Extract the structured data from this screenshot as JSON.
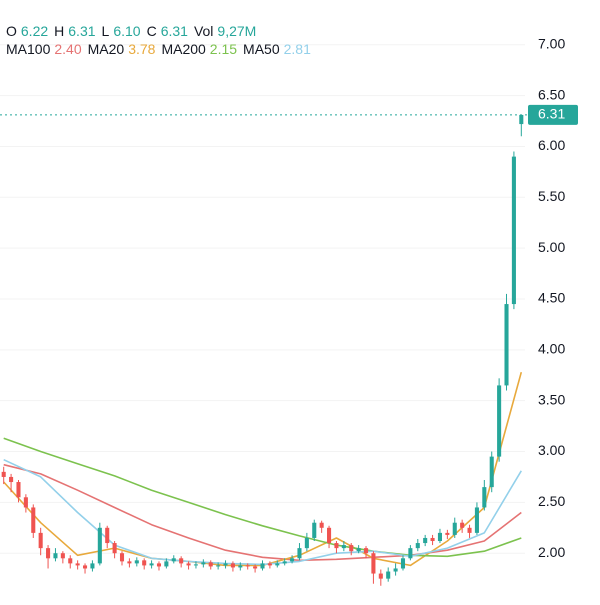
{
  "header": {
    "ohlcv": [
      {
        "label": "O",
        "value": "6.22"
      },
      {
        "label": "H",
        "value": "6.31"
      },
      {
        "label": "L",
        "value": "6.10"
      },
      {
        "label": "C",
        "value": "6.31"
      },
      {
        "label": "Vol",
        "value": "9,27M"
      }
    ]
  },
  "chart_data": {
    "type": "candlestick",
    "up_color": "#26a69a",
    "down_color": "#ef5350",
    "xlim": [
      -0.5,
      70.5
    ],
    "ylim": [
      1.54,
      7.44
    ],
    "yticks": [
      {
        "value": 2,
        "label": "2.00"
      },
      {
        "value": 2.5,
        "label": "2.50"
      },
      {
        "value": 3,
        "label": "3.00"
      },
      {
        "value": 3.5,
        "label": "3.50"
      },
      {
        "value": 4,
        "label": "4.00"
      },
      {
        "value": 4.5,
        "label": "4.50"
      },
      {
        "value": 5,
        "label": "5.00"
      },
      {
        "value": 5.5,
        "label": "5.50"
      },
      {
        "value": 6,
        "label": "6.00"
      },
      {
        "value": 6.5,
        "label": "6.50"
      },
      {
        "value": 7,
        "label": "7.00"
      }
    ],
    "grid": true,
    "last_price": 6.31,
    "open": [
      2.8,
      2.75,
      2.7,
      2.55,
      2.45,
      2.2,
      2.05,
      1.95,
      2.0,
      1.95,
      1.9,
      1.88,
      1.85,
      1.9,
      2.25,
      2.1,
      2.0,
      1.92,
      1.9,
      1.93,
      1.88,
      1.9,
      1.87,
      1.92,
      1.95,
      1.9,
      1.88,
      1.89,
      1.91,
      1.87,
      1.88,
      1.9,
      1.86,
      1.88,
      1.87,
      1.85,
      1.9,
      1.88,
      1.9,
      1.92,
      1.95,
      2.05,
      2.15,
      2.3,
      2.25,
      2.1,
      2.05,
      2.08,
      2.02,
      2.05,
      2.0,
      1.8,
      1.75,
      1.82,
      1.85,
      1.95,
      2.05,
      2.1,
      2.15,
      2.12,
      2.2,
      2.18,
      2.3,
      2.25,
      2.2,
      2.45,
      2.65,
      2.95,
      3.65,
      4.45,
      6.22
    ],
    "high": [
      2.85,
      2.78,
      2.72,
      2.58,
      2.48,
      2.25,
      2.08,
      2.05,
      2.02,
      1.98,
      1.93,
      1.9,
      1.93,
      2.3,
      2.27,
      2.12,
      2.02,
      1.95,
      1.96,
      1.95,
      1.93,
      1.92,
      1.95,
      1.98,
      1.97,
      1.92,
      1.92,
      1.94,
      1.93,
      1.91,
      1.93,
      1.92,
      1.91,
      1.9,
      1.89,
      1.93,
      1.92,
      1.93,
      1.95,
      1.98,
      2.1,
      2.2,
      2.33,
      2.32,
      2.27,
      2.12,
      2.12,
      2.1,
      2.08,
      2.07,
      2.02,
      1.84,
      1.86,
      1.9,
      1.98,
      2.08,
      2.14,
      2.18,
      2.18,
      2.24,
      2.23,
      2.35,
      2.33,
      2.28,
      2.5,
      2.72,
      3.0,
      3.72,
      4.55,
      5.95,
      6.31
    ],
    "low": [
      2.68,
      2.6,
      2.5,
      2.4,
      2.15,
      1.98,
      1.85,
      1.92,
      1.9,
      1.85,
      1.84,
      1.8,
      1.82,
      1.88,
      2.05,
      1.95,
      1.88,
      1.86,
      1.87,
      1.84,
      1.85,
      1.83,
      1.85,
      1.9,
      1.86,
      1.84,
      1.85,
      1.86,
      1.84,
      1.84,
      1.85,
      1.82,
      1.83,
      1.84,
      1.81,
      1.83,
      1.85,
      1.86,
      1.88,
      1.9,
      1.93,
      2.02,
      2.12,
      2.2,
      2.05,
      2.0,
      2.02,
      1.98,
      2.0,
      1.95,
      1.7,
      1.68,
      1.72,
      1.78,
      1.83,
      1.93,
      2.02,
      2.07,
      2.08,
      2.1,
      2.14,
      2.15,
      2.2,
      2.15,
      2.18,
      2.42,
      2.6,
      2.9,
      3.6,
      4.4,
      6.1
    ],
    "close": [
      2.75,
      2.7,
      2.55,
      2.45,
      2.2,
      2.05,
      1.95,
      2.0,
      1.95,
      1.9,
      1.88,
      1.85,
      1.9,
      2.25,
      2.1,
      2.0,
      1.92,
      1.9,
      1.93,
      1.88,
      1.9,
      1.87,
      1.92,
      1.95,
      1.9,
      1.88,
      1.89,
      1.91,
      1.87,
      1.88,
      1.9,
      1.86,
      1.88,
      1.87,
      1.85,
      1.9,
      1.88,
      1.9,
      1.92,
      1.95,
      2.05,
      2.15,
      2.3,
      2.25,
      2.1,
      2.05,
      2.08,
      2.02,
      2.05,
      2.0,
      1.8,
      1.75,
      1.82,
      1.85,
      1.95,
      2.05,
      2.1,
      2.15,
      2.12,
      2.2,
      2.18,
      2.3,
      2.25,
      2.2,
      2.45,
      2.65,
      2.95,
      3.65,
      4.45,
      5.9,
      6.31
    ],
    "series": [
      {
        "name": "MA100",
        "legend_value": "2.40",
        "color": "#e57373",
        "x": [
          0,
          5,
          10,
          15,
          20,
          25,
          30,
          35,
          40,
          45,
          50,
          55,
          60,
          65,
          70
        ],
        "values": [
          2.87,
          2.78,
          2.62,
          2.45,
          2.28,
          2.15,
          2.03,
          1.96,
          1.93,
          1.94,
          1.96,
          1.98,
          2.03,
          2.12,
          2.4
        ]
      },
      {
        "name": "MA20",
        "legend_value": "3.78",
        "color": "#e8a93c",
        "x": [
          0,
          5,
          10,
          15,
          20,
          25,
          30,
          35,
          40,
          45,
          50,
          55,
          60,
          65,
          70
        ],
        "values": [
          2.7,
          2.3,
          1.98,
          2.05,
          1.95,
          1.92,
          1.88,
          1.88,
          1.98,
          2.15,
          1.95,
          1.88,
          2.12,
          2.45,
          3.78
        ]
      },
      {
        "name": "MA200",
        "legend_value": "2.15",
        "color": "#7cc24e",
        "x": [
          0,
          5,
          10,
          15,
          20,
          25,
          30,
          35,
          40,
          45,
          50,
          55,
          60,
          65,
          70
        ],
        "values": [
          3.13,
          3.0,
          2.88,
          2.76,
          2.62,
          2.5,
          2.38,
          2.27,
          2.17,
          2.08,
          2.02,
          1.98,
          1.97,
          2.02,
          2.15
        ]
      },
      {
        "name": "MA50",
        "legend_value": "2.81",
        "color": "#93d0ea",
        "x": [
          0,
          5,
          10,
          15,
          20,
          25,
          30,
          35,
          40,
          45,
          50,
          55,
          60,
          65,
          70
        ],
        "values": [
          2.92,
          2.75,
          2.4,
          2.08,
          1.95,
          1.92,
          1.9,
          1.89,
          1.92,
          2.0,
          2.02,
          1.97,
          2.05,
          2.2,
          2.81
        ]
      }
    ]
  }
}
